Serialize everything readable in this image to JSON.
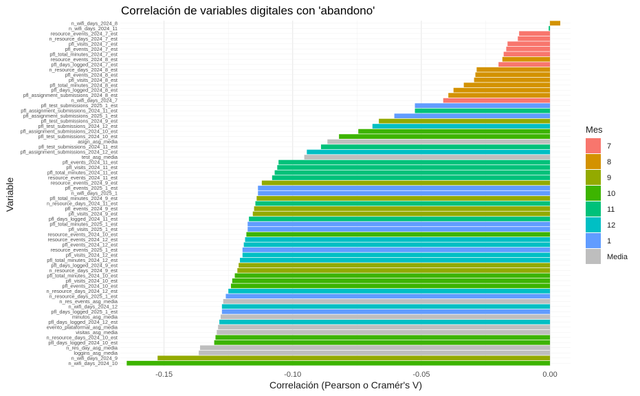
{
  "chart_data": {
    "type": "bar",
    "orientation": "horizontal",
    "title": "Correlación de variables digitales con 'abandono'",
    "xlabel": "Correlación (Pearson o Cramér's V)",
    "ylabel": "Variable",
    "xlim": [
      -0.167,
      0.008
    ],
    "xticks": [
      -0.15,
      -0.1,
      -0.05,
      0.0
    ],
    "xtick_labels": [
      "-0.15",
      "-0.10",
      "-0.05",
      "0.00"
    ],
    "grid": true,
    "legend": {
      "title": "Mes",
      "position": "right",
      "items": [
        {
          "label": "7",
          "color": "#F8766D"
        },
        {
          "label": "8",
          "color": "#D39200"
        },
        {
          "label": "9",
          "color": "#93AA00"
        },
        {
          "label": "10",
          "color": "#3DB400"
        },
        {
          "label": "11",
          "color": "#00C17A"
        },
        {
          "label": "12",
          "color": "#00BFC4"
        },
        {
          "label": "1",
          "color": "#619CFF"
        },
        {
          "label": "Media",
          "color": "#BEBEBE"
        }
      ]
    },
    "bars": [
      {
        "label": "n_wifi_days_2024_8",
        "value": 0.004,
        "group": "8"
      },
      {
        "label": "n_wifi_days_2024_11",
        "value": -0.0005,
        "group": "11"
      },
      {
        "label": "resource_events_2024_7_est",
        "value": -0.012,
        "group": "7"
      },
      {
        "label": "n_resource_days_2024_7_est",
        "value": -0.0125,
        "group": "7"
      },
      {
        "label": "pfl_visits_2024_7_est",
        "value": -0.0165,
        "group": "7"
      },
      {
        "label": "pfl_events_2024_7_est",
        "value": -0.017,
        "group": "7"
      },
      {
        "label": "pfl_total_minutes_2024_7_est",
        "value": -0.018,
        "group": "7"
      },
      {
        "label": "resource_events_2024_8_est",
        "value": -0.0185,
        "group": "8"
      },
      {
        "label": "pfl_days_logged_2024_7_est",
        "value": -0.02,
        "group": "7"
      },
      {
        "label": "n_resource_days_2024_8_est",
        "value": -0.0285,
        "group": "8"
      },
      {
        "label": "pfl_events_2024_8_est",
        "value": -0.029,
        "group": "8"
      },
      {
        "label": "pfl_visits_2024_8_est",
        "value": -0.0295,
        "group": "8"
      },
      {
        "label": "pfl_total_minutes_2024_8_est",
        "value": -0.0335,
        "group": "8"
      },
      {
        "label": "pfl_days_logged_2024_8_est",
        "value": -0.0375,
        "group": "8"
      },
      {
        "label": "pfl_assignment_submissions_2024_8_est",
        "value": -0.0395,
        "group": "8"
      },
      {
        "label": "n_wifi_days_2024_7",
        "value": -0.0415,
        "group": "7"
      },
      {
        "label": "pfl_test_submissions_2025_1_est",
        "value": -0.0525,
        "group": "1"
      },
      {
        "label": "pfl_assignment_submissions_2024_11_est",
        "value": -0.0525,
        "group": "11"
      },
      {
        "label": "pfl_assignment_submissions_2025_1_est",
        "value": -0.0605,
        "group": "1"
      },
      {
        "label": "pfl_test_submissions_2024_9_est",
        "value": -0.0665,
        "group": "9"
      },
      {
        "label": "pfl_test_submissions_2024_12_est",
        "value": -0.069,
        "group": "12"
      },
      {
        "label": "pfl_assignment_submissions_2024_10_est",
        "value": -0.0745,
        "group": "10"
      },
      {
        "label": "pfl_test_submissions_2024_10_est",
        "value": -0.082,
        "group": "10"
      },
      {
        "label": "asign_asg_media",
        "value": -0.0865,
        "group": "Media"
      },
      {
        "label": "pfl_test_submissions_2024_11_est",
        "value": -0.089,
        "group": "11"
      },
      {
        "label": "pfl_assignment_submissions_2024_12_est",
        "value": -0.0945,
        "group": "12"
      },
      {
        "label": "test_asg_media",
        "value": -0.0955,
        "group": "Media"
      },
      {
        "label": "pfl_events_2024_11_est",
        "value": -0.1055,
        "group": "11"
      },
      {
        "label": "pfl_visits_2024_11_est",
        "value": -0.106,
        "group": "11"
      },
      {
        "label": "pfl_total_minutes_2024_11_est",
        "value": -0.107,
        "group": "11"
      },
      {
        "label": "resource_events_2024_11_est",
        "value": -0.108,
        "group": "11"
      },
      {
        "label": "resource_events_2024_9_est",
        "value": -0.112,
        "group": "9"
      },
      {
        "label": "pfl_events_2025_1_est",
        "value": -0.1135,
        "group": "1"
      },
      {
        "label": "n_wifi_days_2025_1",
        "value": -0.1135,
        "group": "1"
      },
      {
        "label": "pfl_total_minutes_2024_9_est",
        "value": -0.114,
        "group": "9"
      },
      {
        "label": "n_resource_days_2024_11_est",
        "value": -0.1145,
        "group": "11"
      },
      {
        "label": "pfl_events_2024_9_est",
        "value": -0.115,
        "group": "9"
      },
      {
        "label": "pfl_visits_2024_9_est",
        "value": -0.1155,
        "group": "9"
      },
      {
        "label": "pfl_days_logged_2024_11_est",
        "value": -0.117,
        "group": "11"
      },
      {
        "label": "pfl_total_minutes_2025_1_est",
        "value": -0.1175,
        "group": "1"
      },
      {
        "label": "pfl_visits_2025_1_est",
        "value": -0.1175,
        "group": "1"
      },
      {
        "label": "resource_events_2024_10_est",
        "value": -0.118,
        "group": "10"
      },
      {
        "label": "resource_events_2024_12_est",
        "value": -0.1185,
        "group": "12"
      },
      {
        "label": "pfl_events_2024_12_est",
        "value": -0.119,
        "group": "12"
      },
      {
        "label": "resource_events_2025_1_est",
        "value": -0.1195,
        "group": "1"
      },
      {
        "label": "pfl_visits_2024_12_est",
        "value": -0.1195,
        "group": "12"
      },
      {
        "label": "pfl_total_minutes_2024_12_est",
        "value": -0.1205,
        "group": "12"
      },
      {
        "label": "pfl_days_logged_2024_9_est",
        "value": -0.121,
        "group": "9"
      },
      {
        "label": "n_resource_days_2024_9_est",
        "value": -0.1215,
        "group": "9"
      },
      {
        "label": "pfl_total_minutes_2024_10_est",
        "value": -0.1225,
        "group": "10"
      },
      {
        "label": "pfl_visits_2024_10_est",
        "value": -0.1235,
        "group": "10"
      },
      {
        "label": "pfl_events_2024_10_est",
        "value": -0.124,
        "group": "10"
      },
      {
        "label": "n_resource_days_2024_12_est",
        "value": -0.125,
        "group": "12"
      },
      {
        "label": "n_resource_days_2025_1_est",
        "value": -0.126,
        "group": "1"
      },
      {
        "label": "n_res_events_asg_media",
        "value": -0.127,
        "group": "Media"
      },
      {
        "label": "n_wifi_days_2024_12",
        "value": -0.1275,
        "group": "12"
      },
      {
        "label": "pfl_days_logged_2025_1_est",
        "value": -0.1275,
        "group": "1"
      },
      {
        "label": "minutos_asg_media",
        "value": -0.128,
        "group": "Media"
      },
      {
        "label": "pfl_days_logged_2024_12_est",
        "value": -0.1285,
        "group": "12"
      },
      {
        "label": "evento_plataformal_asg_media",
        "value": -0.129,
        "group": "Media"
      },
      {
        "label": "visitas_asg_media",
        "value": -0.1295,
        "group": "Media"
      },
      {
        "label": "n_resource_days_2024_10_est",
        "value": -0.13,
        "group": "10"
      },
      {
        "label": "pfl_days_logged_2024_10_est",
        "value": -0.1305,
        "group": "10"
      },
      {
        "label": "n_res_day_asg_media",
        "value": -0.136,
        "group": "Media"
      },
      {
        "label": "loggins_asg_media",
        "value": -0.1365,
        "group": "Media"
      },
      {
        "label": "n_wifi_days_2024_9",
        "value": -0.1525,
        "group": "9"
      },
      {
        "label": "n_wifi_days_2024_10",
        "value": -0.1645,
        "group": "10"
      }
    ]
  }
}
